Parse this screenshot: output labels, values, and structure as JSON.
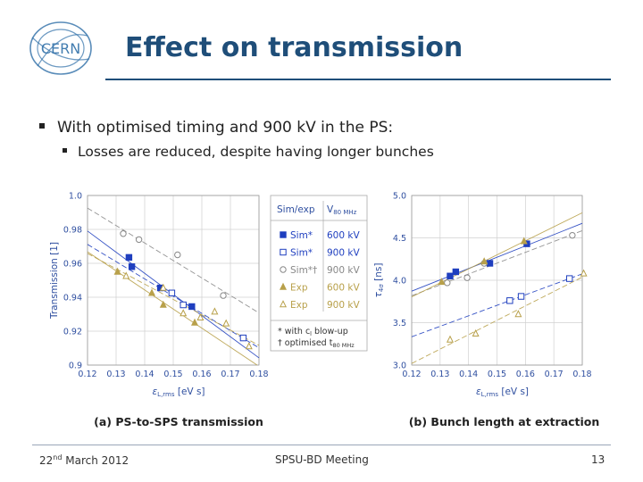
{
  "slide": {
    "logo_text": "CERN",
    "title": "Effect on transmission",
    "bullet1": "With optimised timing and 900 kV in the PS:",
    "bullet2": "Losses are reduced, despite having longer bunches"
  },
  "chart_data": [
    {
      "type": "scatter",
      "title": "",
      "caption": "(a) PS-to-SPS transmission",
      "xlabel": "ε",
      "xlabel_sub": "L,rms",
      "xlabel_unit": "[eV s]",
      "ylabel": "Transmission [1]",
      "xlim": [
        0.12,
        0.18
      ],
      "ylim": [
        0.9,
        1.0
      ],
      "xticks": [
        "0.12",
        "0.13",
        "0.14",
        "0.15",
        "0.16",
        "0.17",
        "0.18"
      ],
      "yticks": [
        "0.9",
        "0.92",
        "0.94",
        "0.96",
        "0.98",
        "1.0"
      ],
      "grid": true,
      "series": [
        {
          "name": "Sim* 600 kV",
          "x": [
            0.1345,
            0.1355,
            0.1455,
            0.1565
          ],
          "y": [
            0.9635,
            0.958,
            0.9455,
            0.9345
          ]
        },
        {
          "name": "Sim* 900 kV",
          "x": [
            0.1495,
            0.1535,
            0.1745
          ],
          "y": [
            0.9425,
            0.9355,
            0.916
          ]
        },
        {
          "name": "Sim*† 900 kV",
          "x": [
            0.1325,
            0.138,
            0.1515,
            0.1675
          ],
          "y": [
            0.9775,
            0.974,
            0.965,
            0.941
          ]
        },
        {
          "name": "Exp 600 kV",
          "x": [
            0.1305,
            0.1425,
            0.1465,
            0.1575
          ],
          "y": [
            0.955,
            0.9425,
            0.9355,
            0.925
          ]
        },
        {
          "name": "Exp 900 kV",
          "x": [
            0.1335,
            0.1465,
            0.1535,
            0.1595,
            0.1645,
            0.1685,
            0.1765
          ],
          "y": [
            0.9525,
            0.9455,
            0.9305,
            0.928,
            0.9315,
            0.9245,
            0.911
          ]
        }
      ]
    },
    {
      "type": "scatter",
      "title": "",
      "caption": "(b) Bunch length at extraction",
      "xlabel": "ε",
      "xlabel_sub": "L,rms",
      "xlabel_unit": "[eV s]",
      "ylabel": "τ",
      "ylabel_sub": "4σ",
      "ylabel_unit": "[ns]",
      "xlim": [
        0.12,
        0.18
      ],
      "ylim": [
        3.0,
        5.0
      ],
      "xticks": [
        "0.12",
        "0.13",
        "0.14",
        "0.15",
        "0.16",
        "0.17",
        "0.18"
      ],
      "yticks": [
        "3.0",
        "3.5",
        "4.0",
        "4.5",
        "5.0"
      ],
      "grid": true,
      "series": [
        {
          "name": "Sim* 600 kV",
          "x": [
            0.1335,
            0.1355,
            0.1475,
            0.1605
          ],
          "y": [
            4.05,
            4.1,
            4.2,
            4.43
          ]
        },
        {
          "name": "Sim* 900 kV",
          "x": [
            0.1545,
            0.1585,
            0.1755
          ],
          "y": [
            3.76,
            3.81,
            4.02
          ]
        },
        {
          "name": "Sim*† 900 kV",
          "x": [
            0.1325,
            0.1395,
            0.1455,
            0.1765
          ],
          "y": [
            3.97,
            4.03,
            4.2,
            4.53
          ]
        },
        {
          "name": "Exp 600 kV",
          "x": [
            0.1305,
            0.1455,
            0.1595
          ],
          "y": [
            3.98,
            4.22,
            4.46
          ]
        },
        {
          "name": "Exp 900 kV",
          "x": [
            0.1335,
            0.1425,
            0.1575,
            0.1805
          ],
          "y": [
            3.3,
            3.37,
            3.6,
            4.08
          ]
        }
      ]
    }
  ],
  "legend": {
    "header_left": "Sim/exp",
    "header_right": "V",
    "header_right_sub": "80 MHz",
    "rows": [
      {
        "label": "Sim*",
        "voltage": "600 kV",
        "color": "#1f3fbf",
        "marker": "square-filled",
        "text_color": "#1f3fbf"
      },
      {
        "label": "Sim*",
        "voltage": "900 kV",
        "color": "#1f3fbf",
        "marker": "square-open",
        "text_color": "#1f3fbf"
      },
      {
        "label": "Sim*†",
        "voltage": "900 kV",
        "color": "#888888",
        "marker": "circle-open",
        "text_color": "#888888"
      },
      {
        "label": "Exp",
        "voltage": "600 kV",
        "color": "#b8a04a",
        "marker": "triangle-filled",
        "text_color": "#b8a04a"
      },
      {
        "label": "Exp",
        "voltage": "900 kV",
        "color": "#b8a04a",
        "marker": "triangle-open",
        "text_color": "#b8a04a"
      }
    ],
    "note1": "* with c",
    "note1_sub": "l",
    "note1_rest": " blow-up",
    "note2": "† optimised t",
    "note2_sub": "80 MHz"
  },
  "footer": {
    "date_day": "22",
    "date_sup": "nd",
    "date_rest": " March 2012",
    "center": "SPSU-BD Meeting",
    "page": "13"
  },
  "colors": {
    "title": "#1f4e79",
    "blue": "#1f3fbf",
    "gray": "#888888",
    "gold": "#b8a04a",
    "grid": "#d0d0d0",
    "tick_blue": "#2f4fa0"
  }
}
